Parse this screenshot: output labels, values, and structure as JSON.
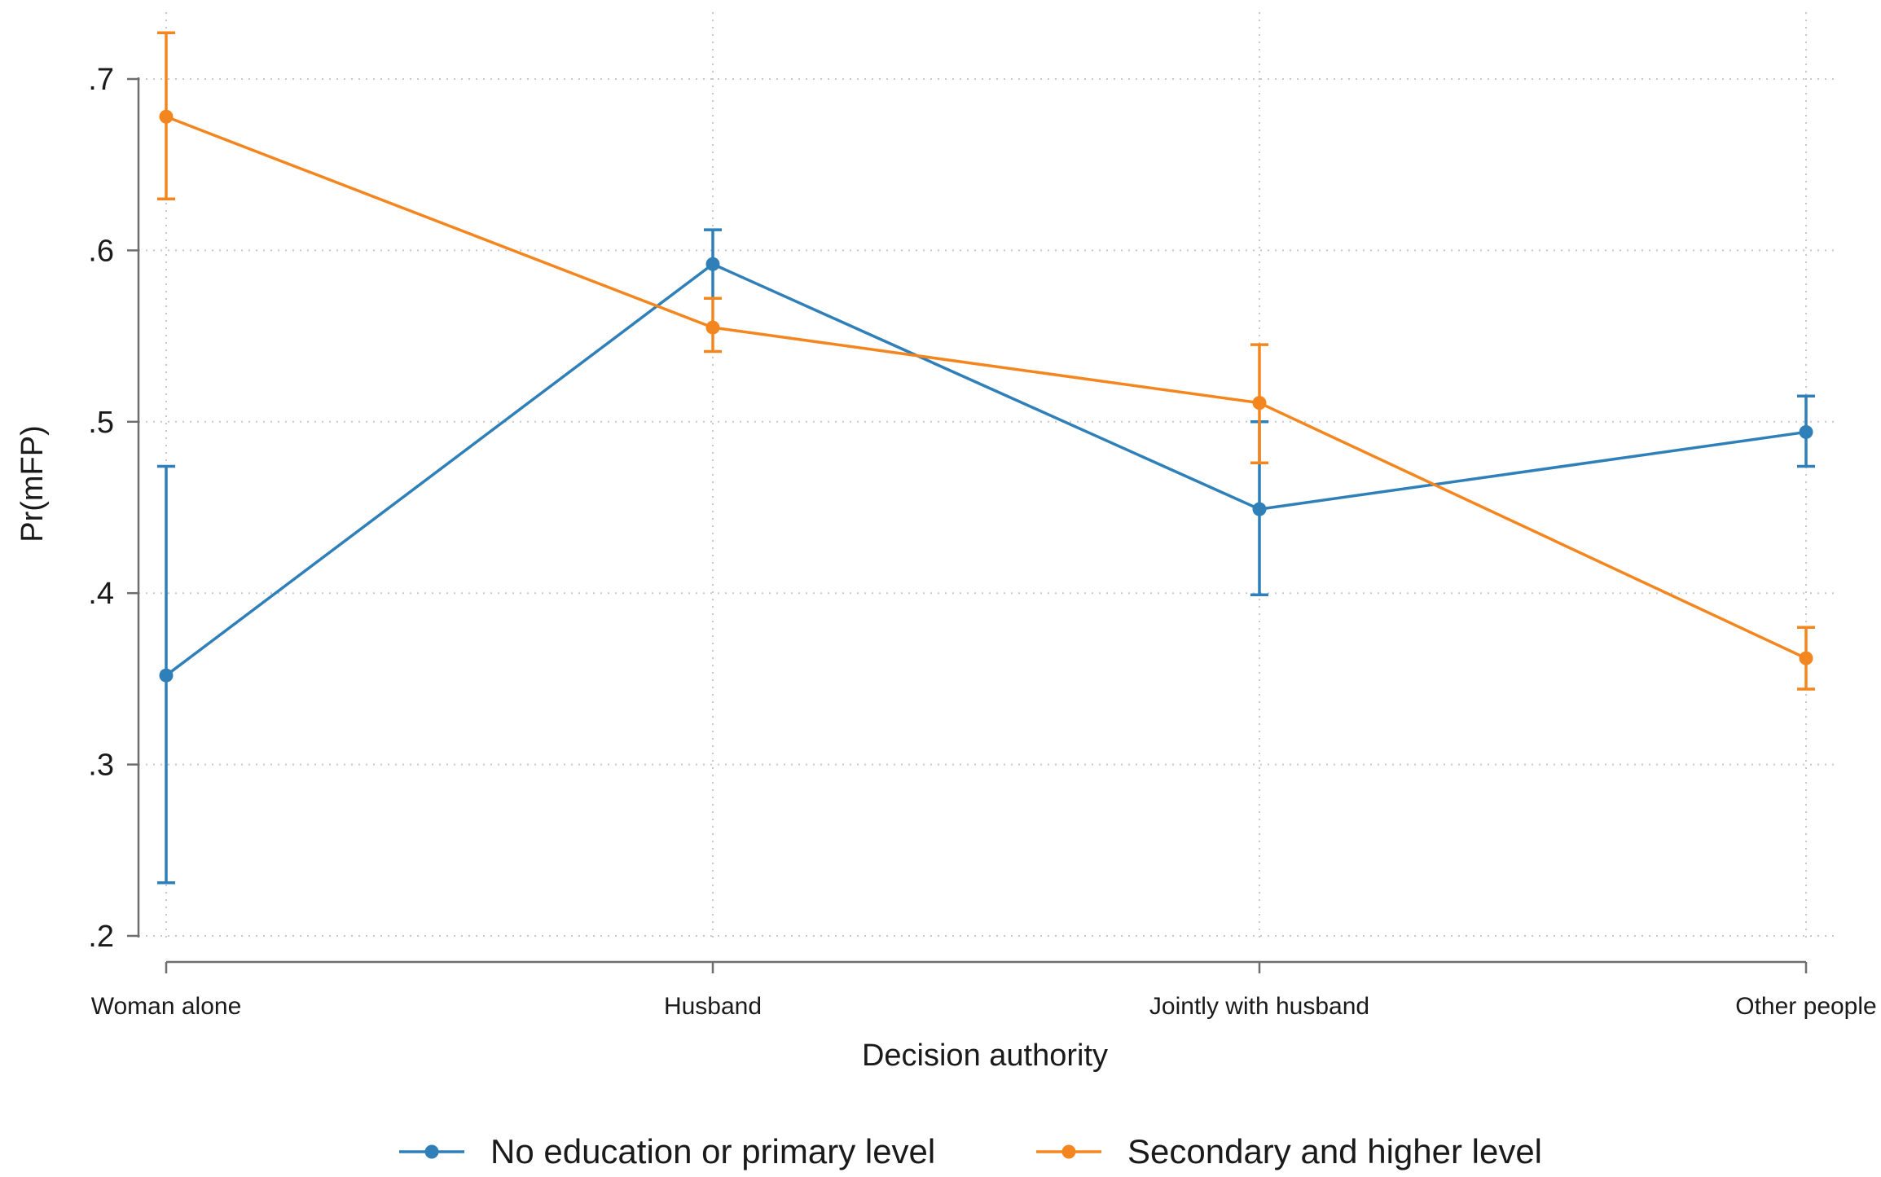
{
  "chart_data": {
    "type": "line",
    "title": "",
    "xlabel": "Decision authority",
    "ylabel": "Pr(mFP)",
    "categories": [
      "Woman alone",
      "Husband",
      "Jointly with husband",
      "Other people"
    ],
    "ylim": [
      0.2,
      0.7
    ],
    "yticks": [
      0.2,
      0.3,
      0.4,
      0.5,
      0.6,
      0.7
    ],
    "ytick_labels": [
      ".2",
      ".3",
      ".4",
      ".5",
      ".6",
      ".7"
    ],
    "grid": true,
    "error_bars": true,
    "legend_position": "bottom",
    "series": [
      {
        "name": "No education or primary level",
        "color": "#2f7fb8",
        "values": [
          0.352,
          0.592,
          0.449,
          0.494
        ],
        "lower": [
          0.231,
          0.572,
          0.399,
          0.474
        ],
        "upper": [
          0.474,
          0.612,
          0.5,
          0.515
        ]
      },
      {
        "name": "Secondary and higher level",
        "color": "#f4861f",
        "values": [
          0.678,
          0.555,
          0.511,
          0.362
        ],
        "lower": [
          0.63,
          0.541,
          0.476,
          0.344
        ],
        "upper": [
          0.727,
          0.572,
          0.545,
          0.38
        ]
      }
    ]
  }
}
